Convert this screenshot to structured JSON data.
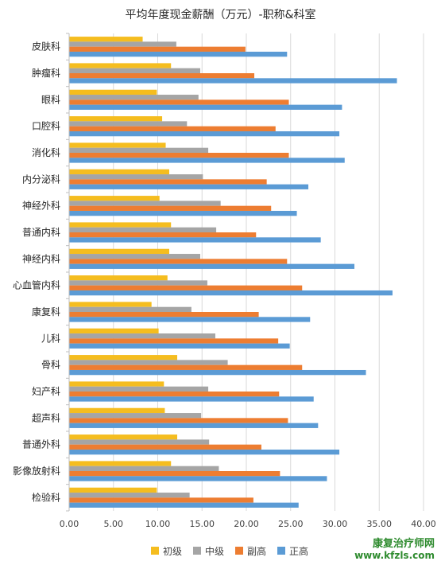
{
  "chart_data": {
    "type": "bar",
    "orientation": "horizontal",
    "title": "平均年度现金薪酬（万元）-职称&科室",
    "categories": [
      "皮肤科",
      "肿瘤科",
      "眼科",
      "口腔科",
      "消化科",
      "内分泌科",
      "神经外科",
      "普通内科",
      "神经内科",
      "心血管内科",
      "康复科",
      "儿科",
      "骨科",
      "妇产科",
      "超声科",
      "普通外科",
      "影像放射科",
      "检验科"
    ],
    "series": [
      {
        "name": "初级",
        "color": "#f5bd1f",
        "values": [
          8.3,
          11.5,
          9.9,
          10.5,
          10.9,
          11.3,
          10.2,
          11.5,
          11.3,
          11.1,
          9.3,
          10.1,
          12.2,
          10.7,
          10.8,
          12.2,
          11.5,
          9.9
        ]
      },
      {
        "name": "中级",
        "color": "#a5a5a5",
        "values": [
          12.1,
          14.8,
          14.6,
          13.3,
          15.7,
          15.1,
          17.1,
          16.6,
          14.8,
          15.6,
          13.8,
          16.5,
          17.9,
          15.7,
          14.9,
          15.8,
          16.9,
          13.6
        ]
      },
      {
        "name": "副高",
        "color": "#ed7d31",
        "values": [
          19.9,
          20.9,
          24.8,
          23.3,
          24.8,
          22.3,
          22.8,
          21.1,
          24.6,
          26.3,
          21.4,
          23.6,
          26.3,
          23.7,
          24.7,
          21.7,
          23.8,
          20.8
        ]
      },
      {
        "name": "正高",
        "color": "#5b9bd5",
        "values": [
          24.6,
          37.0,
          30.8,
          30.5,
          31.1,
          27.0,
          25.7,
          28.4,
          32.2,
          36.5,
          27.2,
          24.9,
          33.5,
          27.6,
          28.1,
          30.5,
          29.1,
          25.9
        ]
      }
    ],
    "xlim": [
      0,
      40
    ],
    "xticks": [
      "0.00",
      "5.00",
      "10.00",
      "15.00",
      "20.00",
      "25.00",
      "30.00",
      "35.00",
      "40.00"
    ],
    "grid": true,
    "legend_position": "bottom"
  },
  "watermark": {
    "title": "康复治疗师网",
    "url": "www.kfzls.com"
  }
}
